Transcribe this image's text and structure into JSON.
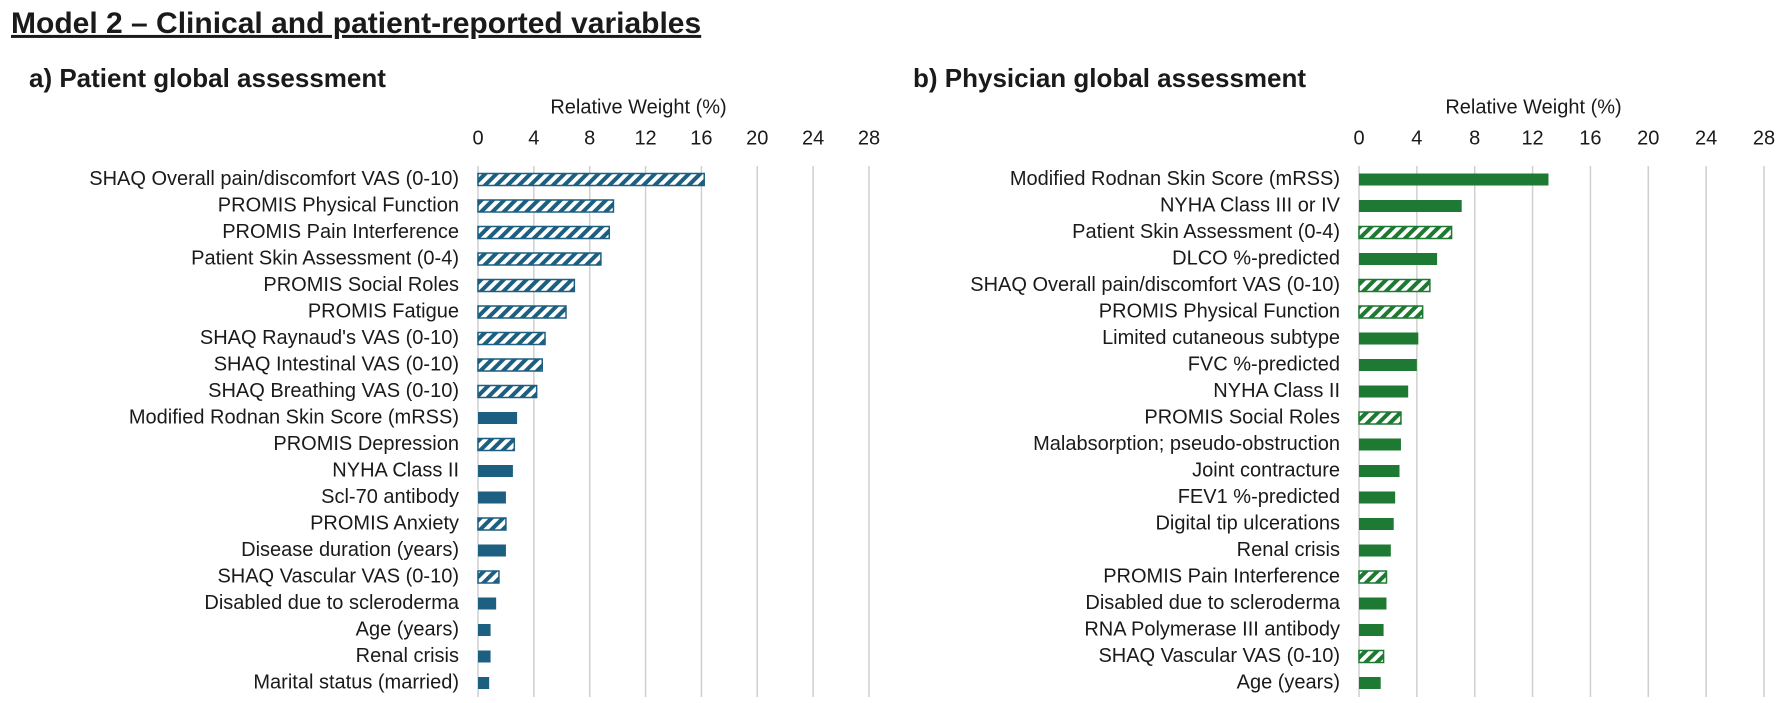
{
  "title": "Model 2 – Clinical and patient-reported variables",
  "chart_data": [
    {
      "type": "bar",
      "orientation": "horizontal",
      "title": "a) Patient global assessment",
      "xlabel": "Relative Weight (%)",
      "categories": [
        "SHAQ Overall pain/discomfort VAS (0-10)",
        "PROMIS Physical Function",
        "PROMIS Pain Interference",
        "Patient Skin Assessment (0-4)",
        "PROMIS Social Roles",
        "PROMIS Fatigue",
        "SHAQ Raynaud's VAS (0-10)",
        "SHAQ Intestinal VAS (0-10)",
        "SHAQ Breathing VAS (0-10)",
        "Modified Rodnan Skin Score (mRSS)",
        "PROMIS Depression",
        "NYHA Class II",
        "Scl-70 antibody",
        "PROMIS Anxiety",
        "Disease duration (years)",
        "SHAQ Vascular VAS (0-10)",
        "Disabled due to scleroderma",
        "Age (years)",
        "Renal crisis",
        "Marital status (married)"
      ],
      "values": [
        16.2,
        9.7,
        9.4,
        8.8,
        6.9,
        6.3,
        4.8,
        4.6,
        4.2,
        2.8,
        2.6,
        2.5,
        2.0,
        2.0,
        2.0,
        1.5,
        1.3,
        0.9,
        0.9,
        0.8
      ],
      "hatched": [
        true,
        true,
        true,
        true,
        true,
        true,
        true,
        true,
        true,
        false,
        true,
        false,
        false,
        true,
        false,
        true,
        false,
        false,
        false,
        false
      ],
      "color": "#1d5f80",
      "xlim": [
        0,
        28
      ],
      "xticks": [
        0,
        4,
        8,
        12,
        16,
        20,
        24,
        28
      ],
      "grid": true
    },
    {
      "type": "bar",
      "orientation": "horizontal",
      "title": "b) Physician global assessment",
      "xlabel": "Relative Weight (%)",
      "categories": [
        "Modified Rodnan Skin Score (mRSS)",
        "NYHA Class III or IV",
        "Patient Skin Assessment (0-4)",
        "DLCO %-predicted",
        "SHAQ Overall pain/discomfort VAS (0-10)",
        "PROMIS Physical Function",
        "Limited cutaneous subtype",
        "FVC %-predicted",
        "NYHA Class II",
        "PROMIS Social Roles",
        "Malabsorption; pseudo-obstruction",
        "Joint contracture",
        "FEV1 %-predicted",
        "Digital tip ulcerations",
        "Renal crisis",
        "PROMIS Pain Interference",
        "Disabled due to scleroderma",
        "RNA Polymerase III antibody",
        "SHAQ Vascular VAS (0-10)",
        "Age (years)"
      ],
      "values": [
        13.1,
        7.1,
        6.4,
        5.4,
        4.9,
        4.4,
        4.1,
        4.0,
        3.4,
        2.9,
        2.9,
        2.8,
        2.5,
        2.4,
        2.2,
        1.9,
        1.9,
        1.7,
        1.7,
        1.5
      ],
      "hatched": [
        false,
        false,
        true,
        false,
        true,
        true,
        false,
        false,
        false,
        true,
        false,
        false,
        false,
        false,
        false,
        true,
        false,
        false,
        true,
        false
      ],
      "color": "#1e7a32",
      "xlim": [
        0,
        28
      ],
      "xticks": [
        0,
        4,
        8,
        12,
        16,
        20,
        24,
        28
      ],
      "grid": true
    }
  ]
}
